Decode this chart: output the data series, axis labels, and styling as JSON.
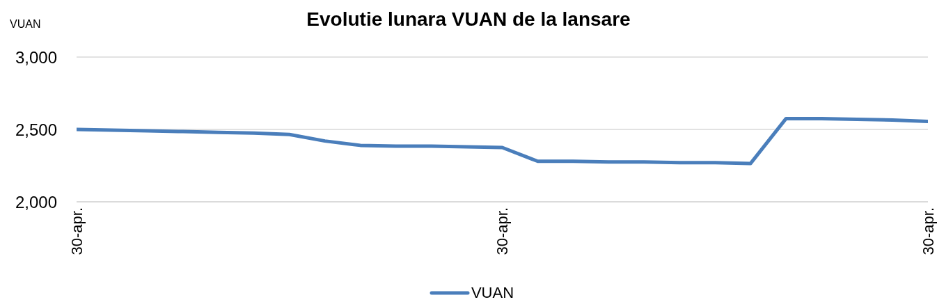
{
  "chart_data": {
    "type": "line",
    "title": "Evolutie lunara VUAN de la lansare",
    "ylabel": "VUAN",
    "categories": [
      "30-apr.",
      null,
      null,
      null,
      null,
      null,
      null,
      null,
      null,
      null,
      null,
      null,
      "30-apr.",
      null,
      null,
      null,
      null,
      null,
      null,
      null,
      null,
      null,
      null,
      null,
      "30-apr."
    ],
    "series": [
      {
        "name": "VUAN",
        "color": "#4a7ebb",
        "values": [
          2500,
          2495,
          2490,
          2485,
          2480,
          2475,
          2465,
          2420,
          2390,
          2385,
          2385,
          2380,
          2375,
          2280,
          2280,
          2275,
          2275,
          2270,
          2270,
          2265,
          2575,
          2575,
          2570,
          2565,
          2555
        ]
      }
    ],
    "ylim": [
      2000,
      3000
    ],
    "yticks": [
      {
        "value": 2000,
        "label": "2,000"
      },
      {
        "value": 2500,
        "label": "2,500"
      },
      {
        "value": 3000,
        "label": "3,000"
      }
    ],
    "grid": "y",
    "legend": "bottom",
    "marker": "none",
    "line_style": "solid"
  }
}
